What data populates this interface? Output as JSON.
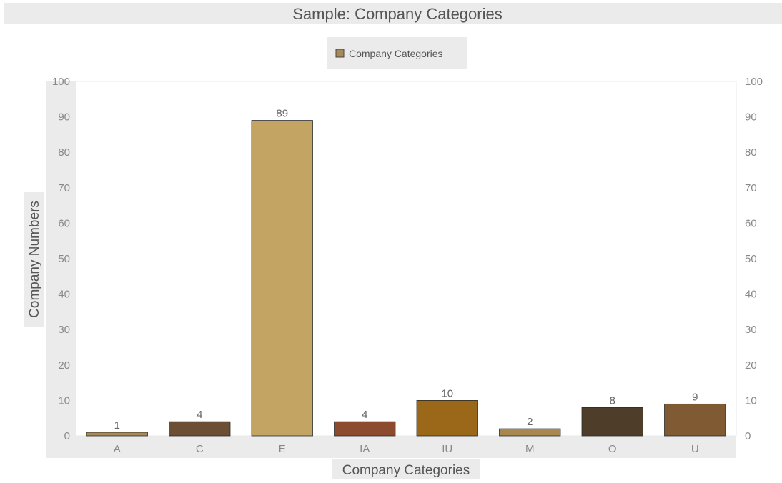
{
  "chart_data": {
    "type": "bar",
    "title": "Sample: Company Categories",
    "xlabel": "Company Categories",
    "ylabel": "Company Numbers",
    "legend": {
      "placement": "top-center",
      "entries": [
        "Company Categories"
      ]
    },
    "categories": [
      "A",
      "C",
      "E",
      "IA",
      "IU",
      "M",
      "O",
      "U"
    ],
    "series": [
      {
        "name": "Company Categories",
        "values": [
          1,
          4,
          89,
          4,
          10,
          2,
          8,
          9
        ]
      }
    ],
    "bar_colors": [
      "#a88a56",
      "#6b4e33",
      "#c4a462",
      "#8c4a2f",
      "#9a6818",
      "#a8884e",
      "#4e3d28",
      "#7f5a32"
    ],
    "legend_color": "#a88a5a",
    "ylim": [
      0,
      100
    ],
    "yticks": [
      0,
      10,
      20,
      30,
      40,
      50,
      60,
      70,
      80,
      90,
      100
    ],
    "secondary_yaxis": true,
    "grid": false,
    "data_labels": true
  }
}
